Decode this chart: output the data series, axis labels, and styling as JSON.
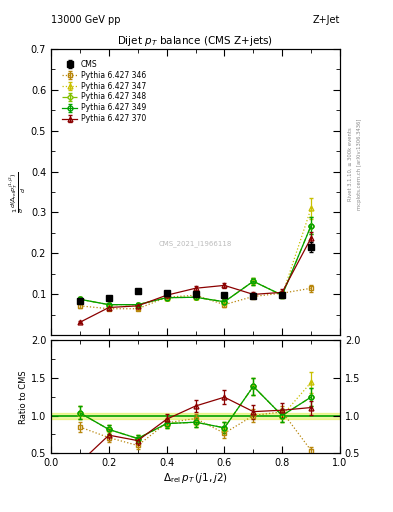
{
  "title_top_left": "13000 GeV pp",
  "title_top_right": "Z+Jet",
  "plot_title": "Dijet $p_T$ balance (CMS Z+jets)",
  "xlabel": "$\\Delta_{\\mathrm{rel}}\\, p_T\\, (j1,j2)$",
  "ylabel_right1": "Rivet 3.1.10, ≥ 300k events",
  "ylabel_right2": "mcplots.cern.ch [arXiv:1306.3436]",
  "watermark": "CMS_2021_I1966118",
  "xlim": [
    0.0,
    1.0
  ],
  "ylim_main": [
    0.0,
    0.7
  ],
  "ylim_ratio": [
    0.5,
    2.0
  ],
  "cms_x": [
    0.1,
    0.2,
    0.3,
    0.4,
    0.5,
    0.6,
    0.7,
    0.8,
    0.9
  ],
  "cms_y": [
    0.085,
    0.092,
    0.108,
    0.103,
    0.102,
    0.098,
    0.095,
    0.098,
    0.215
  ],
  "cms_yerr": [
    0.004,
    0.004,
    0.004,
    0.004,
    0.004,
    0.005,
    0.005,
    0.005,
    0.012
  ],
  "p346_x": [
    0.1,
    0.2,
    0.3,
    0.4,
    0.5,
    0.6,
    0.7,
    0.8,
    0.9
  ],
  "p346_y": [
    0.072,
    0.065,
    0.065,
    0.093,
    0.098,
    0.075,
    0.095,
    0.103,
    0.115
  ],
  "p346_yerr": [
    0.005,
    0.004,
    0.004,
    0.005,
    0.005,
    0.005,
    0.006,
    0.006,
    0.008
  ],
  "p347_x": [
    0.1,
    0.2,
    0.3,
    0.4,
    0.5,
    0.6,
    0.7,
    0.8,
    0.9
  ],
  "p347_y": [
    0.088,
    0.075,
    0.075,
    0.092,
    0.093,
    0.082,
    0.132,
    0.098,
    0.31
  ],
  "p347_yerr": [
    0.006,
    0.005,
    0.005,
    0.005,
    0.005,
    0.006,
    0.008,
    0.007,
    0.025
  ],
  "p348_x": [
    0.1,
    0.2,
    0.3,
    0.4,
    0.5,
    0.6,
    0.7,
    0.8,
    0.9
  ],
  "p348_y": [
    0.088,
    0.075,
    0.075,
    0.092,
    0.093,
    0.082,
    0.132,
    0.098,
    0.268
  ],
  "p348_yerr": [
    0.006,
    0.005,
    0.005,
    0.005,
    0.005,
    0.006,
    0.008,
    0.007,
    0.02
  ],
  "p349_x": [
    0.1,
    0.2,
    0.3,
    0.4,
    0.5,
    0.6,
    0.7,
    0.8,
    0.9
  ],
  "p349_y": [
    0.088,
    0.075,
    0.075,
    0.092,
    0.093,
    0.082,
    0.132,
    0.098,
    0.268
  ],
  "p349_yerr": [
    0.006,
    0.005,
    0.005,
    0.005,
    0.005,
    0.006,
    0.008,
    0.007,
    0.02
  ],
  "p370_x": [
    0.1,
    0.2,
    0.3,
    0.4,
    0.5,
    0.6,
    0.7,
    0.8,
    0.9
  ],
  "p370_y": [
    0.032,
    0.068,
    0.072,
    0.098,
    0.115,
    0.122,
    0.1,
    0.105,
    0.238
  ],
  "p370_yerr": [
    0.003,
    0.005,
    0.005,
    0.006,
    0.006,
    0.007,
    0.007,
    0.007,
    0.015
  ],
  "color_cms": "#000000",
  "color_346": "#b8860b",
  "color_347": "#c8c000",
  "color_348": "#80c000",
  "color_349": "#00a000",
  "color_370": "#8b0000",
  "ratio_band_color": "#d4e800",
  "ratio_line_color": "#00a000"
}
